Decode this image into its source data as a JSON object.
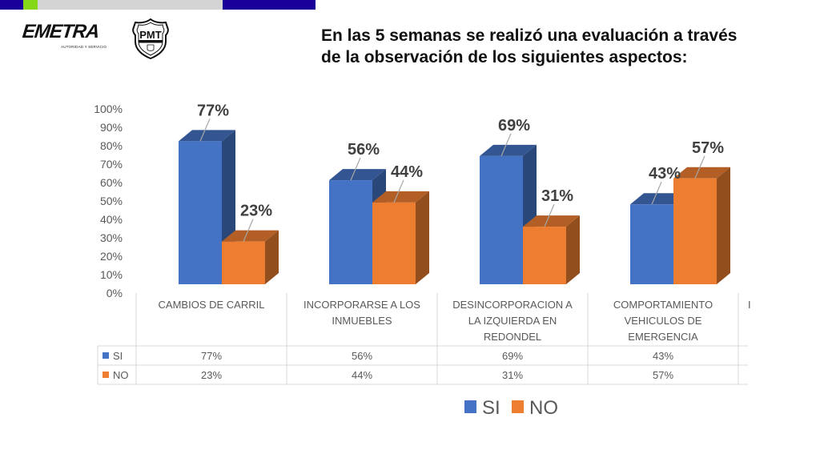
{
  "slide": {
    "title": "En las 5 semanas se realizó una evaluación a través de la observación de los siguientes aspectos:",
    "title_line1": "En las 5 semanas se realizó una evaluación a través",
    "title_line2": "de la observación de los siguientes aspectos:",
    "logos": {
      "emetra": {
        "name": "EMETRA",
        "tagline": "AUTORIDAD Y SERVICIO"
      },
      "pmt": {
        "name": "PMT"
      }
    },
    "top_bar_colors": [
      "#1a0099",
      "#84d816",
      "#d4d4d4",
      "#1a0099"
    ]
  },
  "chart_data": {
    "type": "bar",
    "style": "3d-clustered-column-with-data-table",
    "title": "",
    "xlabel": "",
    "ylabel": "",
    "ylim": [
      0,
      100
    ],
    "y_ticks": [
      "0%",
      "10%",
      "20%",
      "30%",
      "40%",
      "50%",
      "60%",
      "70%",
      "80%",
      "90%",
      "100%"
    ],
    "categories": [
      "CAMBIOS DE CARRIL",
      "INCORPORARSE    A LOS INMUEBLES",
      "DESINCORPORACION A LA IZQUIERDA EN REDONDEL",
      "COMPORTAMIENTO VEHICULOS DE EMERGENCIA",
      "I"
    ],
    "category_lines": [
      [
        "CAMBIOS DE CARRIL"
      ],
      [
        "INCORPORARSE    A LOS",
        "INMUEBLES"
      ],
      [
        "DESINCORPORACION A",
        "LA IZQUIERDA EN",
        "REDONDEL"
      ],
      [
        "COMPORTAMIENTO",
        "VEHICULOS DE",
        "EMERGENCIA"
      ],
      [
        "I"
      ]
    ],
    "series": [
      {
        "name": "SI",
        "color": "#4472c4",
        "values": [
          77,
          56,
          69,
          43
        ],
        "labels": [
          "77%",
          "56%",
          "69%",
          "43%"
        ]
      },
      {
        "name": "NO",
        "color": "#ed7d31",
        "values": [
          23,
          44,
          31,
          57
        ],
        "labels": [
          "23%",
          "44%",
          "31%",
          "57%"
        ]
      }
    ],
    "legend": {
      "position": "bottom",
      "entries": [
        "SI",
        "NO"
      ]
    },
    "grid": false,
    "note": "Fifth category is cut off at the right edge of the slide"
  }
}
